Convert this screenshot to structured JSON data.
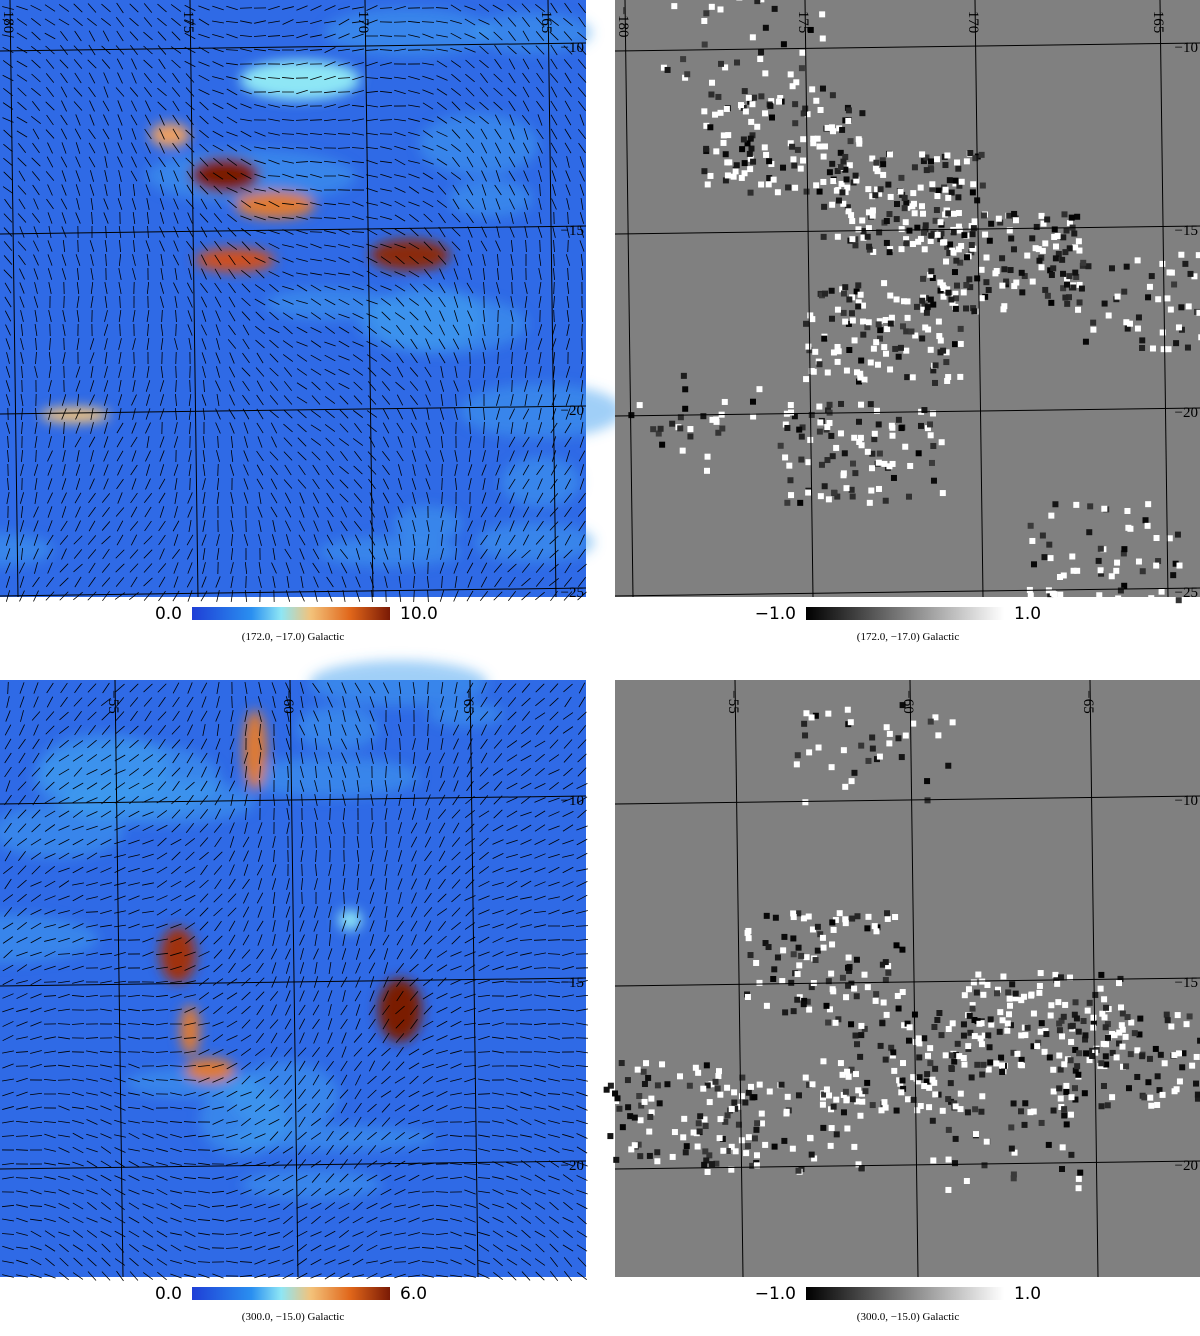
{
  "panels": [
    {
      "colorbar": {
        "min": "0.0",
        "max": "10.0"
      },
      "caption": "(172.0, −17.0) Galactic",
      "lon_labels": [
        "180",
        "175",
        "170",
        "165"
      ],
      "lat_labels": [
        "−10",
        "−15",
        "−20",
        "−25"
      ]
    },
    {
      "colorbar": {
        "min": "−1.0",
        "max": "1.0"
      },
      "caption": "(172.0, −17.0) Galactic",
      "lon_labels": [
        "−180",
        "175",
        "170",
        "165"
      ],
      "lat_labels": [
        "−10",
        "−15",
        "−20",
        "−25"
      ]
    },
    {
      "colorbar": {
        "min": "0.0",
        "max": "6.0"
      },
      "caption": "(300.0, −15.0) Galactic",
      "lon_labels": [
        "−55",
        "−60",
        "−65"
      ],
      "lat_labels": [
        "−10",
        "−15",
        "−20"
      ]
    },
    {
      "colorbar": {
        "min": "−1.0",
        "max": "1.0"
      },
      "caption": "(300.0, −15.0) Galactic",
      "lon_labels": [
        "−55",
        "−60",
        "−65"
      ],
      "lat_labels": [
        "−10",
        "−15",
        "−20"
      ]
    }
  ]
}
